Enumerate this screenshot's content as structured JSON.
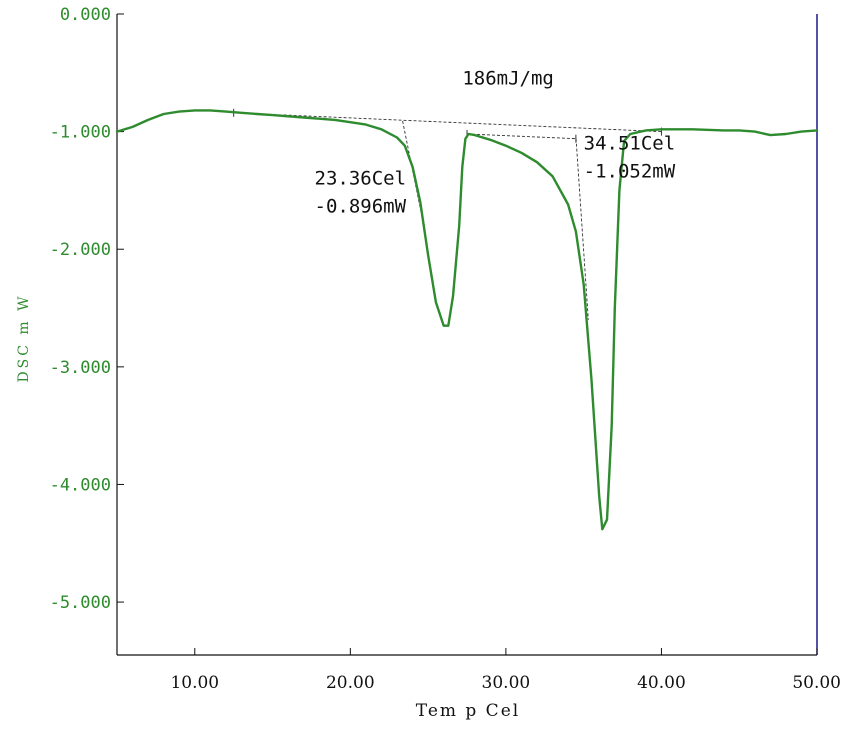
{
  "chart_data": {
    "type": "line",
    "xlabel": "Tem p Cel",
    "ylabel": "DSC m W",
    "xlim": [
      5,
      50
    ],
    "ylim": [
      -5.45,
      0
    ],
    "x_ticks": [
      "10.00",
      "20.00",
      "30.00",
      "40.00",
      "50.00"
    ],
    "x_tick_values": [
      10,
      20,
      30,
      40,
      50
    ],
    "y_ticks": [
      "0.000",
      "-1.000",
      "-2.000",
      "-3.000",
      "-4.000",
      "-5.000"
    ],
    "y_tick_values": [
      0,
      -1,
      -2,
      -3,
      -4,
      -5
    ],
    "grid": false,
    "colors": {
      "curve": "#2e8b2e",
      "frame_right": "#1a1a8c",
      "annotation": "#111111",
      "background": "#ffffff"
    },
    "series": [
      {
        "x": [
          5.0,
          6.0,
          7.0,
          8.0,
          9.0,
          10.0,
          11.0,
          12.0,
          13.0,
          14.0,
          15.0,
          16.0,
          17.0,
          18.0,
          19.0,
          20.0,
          21.0,
          22.0,
          23.0,
          23.5,
          24.0,
          24.5,
          25.0,
          25.5,
          26.0,
          26.3,
          26.6,
          27.0,
          27.2,
          27.4,
          27.6,
          28.0,
          29.0,
          30.0,
          31.0,
          32.0,
          33.0,
          34.0,
          34.5,
          35.0,
          35.5,
          36.0,
          36.2,
          36.5,
          36.8,
          37.0,
          37.3,
          37.6,
          38.0,
          39.0,
          40.0,
          42.0,
          44.0,
          45.0,
          46.0,
          47.0,
          48.0,
          49.0,
          50.0
        ],
        "y": [
          -1.0,
          -0.96,
          -0.9,
          -0.85,
          -0.83,
          -0.82,
          -0.82,
          -0.83,
          -0.84,
          -0.85,
          -0.86,
          -0.87,
          -0.88,
          -0.89,
          -0.9,
          -0.92,
          -0.94,
          -0.98,
          -1.05,
          -1.12,
          -1.3,
          -1.6,
          -2.05,
          -2.45,
          -2.65,
          -2.65,
          -2.4,
          -1.8,
          -1.3,
          -1.06,
          -1.02,
          -1.03,
          -1.07,
          -1.12,
          -1.18,
          -1.26,
          -1.38,
          -1.62,
          -1.85,
          -2.3,
          -3.1,
          -4.1,
          -4.38,
          -4.3,
          -3.5,
          -2.5,
          -1.5,
          -1.08,
          -1.02,
          -0.99,
          -0.98,
          -0.98,
          -0.99,
          -0.99,
          -1.0,
          -1.03,
          -1.02,
          -1.0,
          -0.99
        ]
      }
    ],
    "baselines": [
      {
        "x": [
          12.5,
          40.0
        ],
        "y": [
          -0.84,
          -1.0
        ]
      },
      {
        "x": [
          27.5,
          34.5
        ],
        "y": [
          -1.02,
          -1.06
        ]
      }
    ],
    "onset_tangents": [
      {
        "x": [
          23.36,
          24.8
        ],
        "y": [
          -0.91,
          -1.85
        ]
      },
      {
        "x": [
          34.51,
          35.3
        ],
        "y": [
          -1.06,
          -2.6
        ]
      }
    ],
    "annotations": [
      {
        "id": "area",
        "lines": [
          "186mJ/mg"
        ],
        "x": 27.2,
        "y": -0.6
      },
      {
        "id": "peak1",
        "lines": [
          "23.36Cel",
          "-0.896mW"
        ],
        "x": 17.7,
        "y": -1.45
      },
      {
        "id": "peak2",
        "lines": [
          "34.51Cel",
          "-1.052mW"
        ],
        "x": 35.0,
        "y": -1.15
      }
    ]
  }
}
